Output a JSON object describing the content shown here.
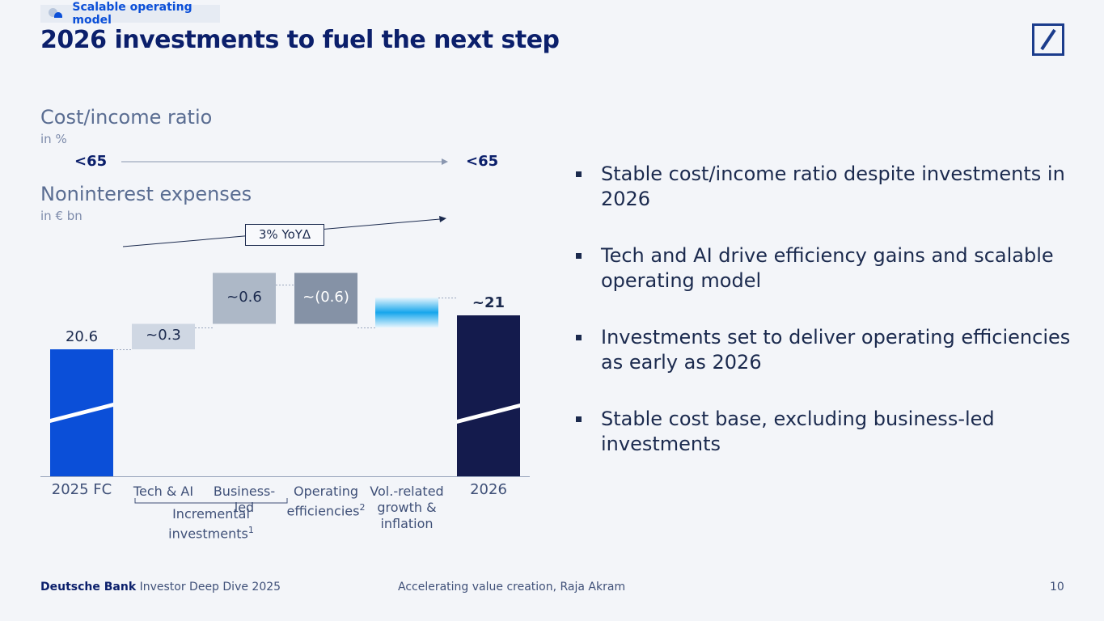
{
  "header": {
    "tag_label": "Scalable operating model",
    "title": "2026 investments to fuel the next step",
    "logo_icon": "deutsche-bank-logo-icon"
  },
  "cost_income": {
    "title": "Cost/income ratio",
    "unit": "in %",
    "start_value": "<65",
    "end_value": "<65"
  },
  "nie": {
    "title": "Noninterest expenses",
    "unit": "in € bn",
    "growth_label": "3% YoYΔ"
  },
  "chart_data": {
    "type": "waterfall",
    "title": "Noninterest expenses",
    "unit": "in € bn",
    "steps": [
      {
        "category": "2025 FC",
        "kind": "total",
        "value": 20.6,
        "label": "20.6",
        "color": "#0b4fd8"
      },
      {
        "category": "Tech & AI",
        "kind": "delta",
        "value": 0.3,
        "label": "~0.3",
        "color": "#cfd7e3"
      },
      {
        "category": "Business-led",
        "kind": "delta",
        "value": 0.6,
        "label": "~0.6",
        "color": "#adb8c7"
      },
      {
        "category": "Operating efficiencies",
        "sup": "2",
        "kind": "delta",
        "value": -0.6,
        "label": "~(0.6)",
        "color": "#8592a6"
      },
      {
        "category": "Vol.-related growth & inflation",
        "kind": "delta",
        "value": 0.1,
        "label": "",
        "color": "#16a6ec"
      },
      {
        "category": "2026",
        "kind": "total",
        "value": 21.0,
        "label": "~21",
        "color": "#141b4d"
      }
    ],
    "axis_break": true,
    "bracket": {
      "label": "Incremental investments",
      "sup": "1",
      "spans": [
        "Tech & AI",
        "Business-led"
      ]
    }
  },
  "bullets": [
    "Stable cost/income ratio despite investments in 2026",
    "Tech and AI drive efficiency gains and scalable operating model",
    "Investments set to deliver operating efficiencies as early as 2026",
    "Stable cost base, excluding business-led investments"
  ],
  "footer": {
    "brand": "Deutsche Bank",
    "event": "Investor Deep Dive 2025",
    "center": "Accelerating value creation, Raja Akram",
    "page": "10"
  }
}
